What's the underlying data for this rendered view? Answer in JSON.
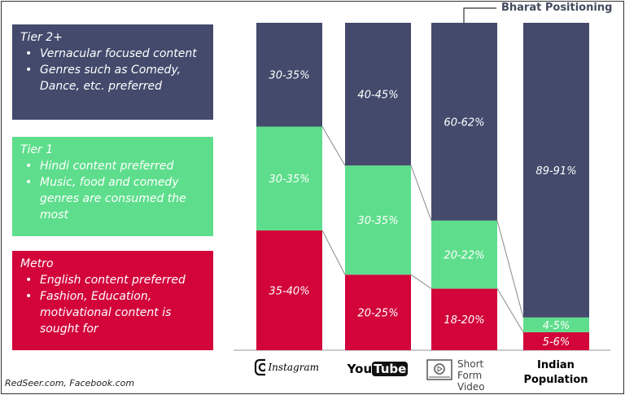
{
  "panels": [
    {
      "title": "Tier 2+",
      "bullets": [
        "Vernacular focused content",
        "Genres such as Comedy, Dance, etc. preferred"
      ]
    },
    {
      "title": "Tier 1",
      "bullets": [
        "Hindi content preferred",
        "Music, food and comedy genres are consumed the most"
      ]
    },
    {
      "title": "Metro",
      "bullets": [
        "English content preferred",
        "Fashion, Education, motivational content is sought for"
      ]
    }
  ],
  "source": "RedSeer.com, Facebook.com",
  "annotation": "Bharat Positioning",
  "chart_data": {
    "type": "bar",
    "stacked": true,
    "categories": [
      "Instagram",
      "YouTube",
      "Short Form Video",
      "Indian Population"
    ],
    "series": [
      {
        "name": "Metro",
        "color": "#d2043a",
        "values": [
          37.5,
          22.5,
          19,
          5.5
        ],
        "labels": [
          "35-40%",
          "20-25%",
          "18-20%",
          "5-6%"
        ]
      },
      {
        "name": "Tier 1",
        "color": "#5ede8c",
        "values": [
          32.5,
          32.5,
          21,
          4.5
        ],
        "labels": [
          "30-35%",
          "30-35%",
          "20-22%",
          "4-5%"
        ]
      },
      {
        "name": "Tier 2+",
        "color": "#434a6c",
        "values": [
          32.5,
          42.5,
          61,
          90
        ],
        "labels": [
          "30-35%",
          "40-45%",
          "60-62%",
          "89-91%"
        ]
      }
    ],
    "ylim": [
      0,
      100
    ],
    "grid": false
  },
  "labels": {
    "instagram": "Instagram",
    "youtube_you": "You",
    "youtube_tube": "Tube",
    "short": "Short Form Video",
    "indian": "Indian Population"
  }
}
